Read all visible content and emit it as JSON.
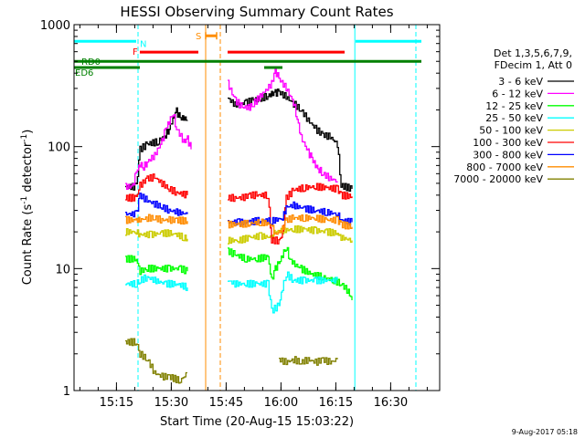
{
  "chart_data": {
    "type": "line",
    "title": "HESSI Observing Summary Count Rates",
    "xlabel": "Start Time (20-Aug-15 15:03:22)",
    "ylabel_main": "Count Rate (s",
    "ylabel_sup1": "-1",
    "ylabel_mid": " detector",
    "ylabel_sup2": "-1",
    "ylabel_end": ")",
    "y_scale": "log",
    "ylim": [
      1,
      1000
    ],
    "xlim_minutes": [
      0,
      100
    ],
    "x_ticks": [
      {
        "label": "15:15",
        "minute": 11.6
      },
      {
        "label": "15:30",
        "minute": 26.6
      },
      {
        "label": "15:45",
        "minute": 41.6
      },
      {
        "label": "16:00",
        "minute": 56.6
      },
      {
        "label": "16:15",
        "minute": 71.6
      },
      {
        "label": "16:30",
        "minute": 86.6
      }
    ],
    "y_ticks": [
      {
        "label": "1",
        "value": 1
      },
      {
        "label": "10",
        "value": 10
      },
      {
        "label": "100",
        "value": 100
      },
      {
        "label": "1000",
        "value": 1000
      }
    ],
    "legend_header": [
      "Det 1,3,5,6,7,9,",
      "FDecim 1, Att 0"
    ],
    "legend_position": "right",
    "series": [
      {
        "name": "3 - 6 keV",
        "color": "#000000",
        "segments": [
          [
            [
              14,
              47
            ],
            [
              17,
              47
            ],
            [
              18,
              95
            ],
            [
              20,
              105
            ],
            [
              23,
              110
            ],
            [
              25,
              125
            ],
            [
              26,
              140
            ],
            [
              27,
              170
            ],
            [
              28,
              195
            ],
            [
              29,
              170
            ],
            [
              30,
              172
            ],
            [
              31,
              165
            ]
          ],
          [
            [
              42,
              250
            ],
            [
              44,
              220
            ],
            [
              47,
              230
            ],
            [
              49,
              240
            ],
            [
              50,
              245
            ],
            [
              51,
              250
            ],
            [
              53,
              260
            ],
            [
              54,
              270
            ],
            [
              55,
              275
            ],
            [
              56,
              280
            ],
            [
              58,
              255
            ],
            [
              60,
              225
            ],
            [
              62,
              200
            ],
            [
              64,
              165
            ],
            [
              66,
              140
            ],
            [
              68,
              125
            ],
            [
              70,
              120
            ],
            [
              72,
              105
            ],
            [
              73,
              48
            ],
            [
              76,
              45
            ]
          ]
        ]
      },
      {
        "name": "6 - 12 keV",
        "color": "#ff00ff",
        "segments": [
          [
            [
              14,
              47
            ],
            [
              16,
              47
            ],
            [
              17,
              62
            ],
            [
              18,
              72
            ],
            [
              19,
              68
            ],
            [
              20,
              75
            ],
            [
              22,
              85
            ],
            [
              24,
              110
            ],
            [
              25,
              140
            ],
            [
              26,
              160
            ],
            [
              27,
              190
            ],
            [
              28,
              140
            ],
            [
              30,
              110
            ],
            [
              31,
              115
            ],
            [
              32,
              95
            ]
          ],
          [
            [
              42,
              330
            ],
            [
              44,
              240
            ],
            [
              46,
              210
            ],
            [
              48,
              210
            ],
            [
              49,
              225
            ],
            [
              52,
              280
            ],
            [
              54,
              330
            ],
            [
              55,
              420
            ],
            [
              56,
              360
            ],
            [
              58,
              300
            ],
            [
              60,
              230
            ],
            [
              61,
              170
            ],
            [
              62,
              120
            ],
            [
              64,
              90
            ],
            [
              65,
              80
            ],
            [
              66,
              70
            ],
            [
              67,
              65
            ],
            [
              68,
              60
            ],
            [
              70,
              55
            ],
            [
              72,
              52
            ]
          ]
        ]
      },
      {
        "name": "12 - 25 keV",
        "color": "#00ff00",
        "segments": [
          [
            [
              14,
              12
            ],
            [
              17,
              12
            ],
            [
              18,
              9.5
            ],
            [
              20,
              10
            ],
            [
              23,
              10
            ],
            [
              26,
              10
            ],
            [
              29,
              10
            ],
            [
              31,
              9.5
            ]
          ],
          [
            [
              42,
              14
            ],
            [
              44,
              13
            ],
            [
              47,
              12
            ],
            [
              50,
              12
            ],
            [
              53,
              12.5
            ],
            [
              54,
              8
            ],
            [
              55,
              10
            ],
            [
              56,
              11
            ],
            [
              57,
              13
            ],
            [
              58,
              15
            ],
            [
              59,
              12
            ],
            [
              60,
              11
            ],
            [
              62,
              10
            ],
            [
              65,
              9
            ],
            [
              68,
              8.5
            ],
            [
              71,
              8
            ],
            [
              73,
              7.5
            ],
            [
              75,
              6.5
            ],
            [
              76,
              5.5
            ]
          ]
        ]
      },
      {
        "name": "25 - 50 keV",
        "color": "#00ffff",
        "segments": [
          [
            [
              14,
              7.5
            ],
            [
              17,
              7.5
            ],
            [
              18,
              8
            ],
            [
              20,
              8.5
            ],
            [
              22,
              8
            ],
            [
              25,
              7.5
            ],
            [
              28,
              7.5
            ],
            [
              31,
              7
            ]
          ],
          [
            [
              42,
              8
            ],
            [
              44,
              7.5
            ],
            [
              47,
              7.5
            ],
            [
              50,
              7.5
            ],
            [
              53,
              7.5
            ],
            [
              54,
              4.5
            ],
            [
              56,
              5
            ],
            [
              57,
              7
            ],
            [
              58,
              9
            ],
            [
              60,
              8
            ],
            [
              63,
              8
            ],
            [
              66,
              8
            ],
            [
              70,
              8
            ],
            [
              72,
              8
            ]
          ]
        ]
      },
      {
        "name": "50 - 100 keV",
        "color": "#cccc00",
        "segments": [
          [
            [
              14,
              20
            ],
            [
              17,
              20
            ],
            [
              18,
              19
            ],
            [
              21,
              19
            ],
            [
              24,
              19.5
            ],
            [
              27,
              19.5
            ],
            [
              30,
              18
            ],
            [
              31,
              17.5
            ]
          ],
          [
            [
              42,
              17
            ],
            [
              45,
              17
            ],
            [
              48,
              18
            ],
            [
              51,
              18.5
            ],
            [
              54,
              18
            ],
            [
              55,
              20
            ],
            [
              57,
              20.5
            ],
            [
              60,
              21
            ],
            [
              63,
              21
            ],
            [
              66,
              20.5
            ],
            [
              69,
              20
            ],
            [
              72,
              19.5
            ],
            [
              73,
              18
            ],
            [
              76,
              17
            ]
          ]
        ]
      },
      {
        "name": "100 - 300 keV",
        "color": "#ff0000",
        "segments": [
          [
            [
              14,
              38
            ],
            [
              17,
              38
            ],
            [
              18,
              48
            ],
            [
              20,
              55
            ],
            [
              22,
              56
            ],
            [
              24,
              50
            ],
            [
              26,
              45
            ],
            [
              28,
              42
            ],
            [
              31,
              40
            ]
          ],
          [
            [
              42,
              38
            ],
            [
              44,
              38
            ],
            [
              46,
              38
            ],
            [
              48,
              40
            ],
            [
              50,
              40
            ],
            [
              53,
              40
            ],
            [
              54,
              17
            ],
            [
              56,
              17
            ],
            [
              57,
              19
            ],
            [
              58,
              38
            ],
            [
              60,
              44
            ],
            [
              63,
              46
            ],
            [
              66,
              47
            ],
            [
              69,
              46
            ],
            [
              72,
              45
            ],
            [
              73,
              40
            ],
            [
              76,
              39
            ]
          ]
        ]
      },
      {
        "name": "300 - 800 keV",
        "color": "#0000ff",
        "segments": [
          [
            [
              14,
              28
            ],
            [
              17,
              28
            ],
            [
              18,
              40
            ],
            [
              20,
              36
            ],
            [
              22,
              34
            ],
            [
              24,
              32
            ],
            [
              26,
              30
            ],
            [
              28,
              29
            ],
            [
              31,
              28
            ]
          ],
          [
            [
              42,
              24
            ],
            [
              45,
              24
            ],
            [
              48,
              24
            ],
            [
              51,
              25
            ],
            [
              54,
              24.5
            ],
            [
              57,
              26
            ],
            [
              58,
              32
            ],
            [
              60,
              33
            ],
            [
              63,
              31
            ],
            [
              66,
              30
            ],
            [
              69,
              29
            ],
            [
              72,
              28
            ],
            [
              73,
              25
            ],
            [
              76,
              24
            ]
          ]
        ]
      },
      {
        "name": "800 - 7000 keV",
        "color": "#ff8c00",
        "segments": [
          [
            [
              14,
              25
            ],
            [
              17,
              25
            ],
            [
              18,
              25
            ],
            [
              20,
              26
            ],
            [
              22,
              26
            ],
            [
              24,
              25
            ],
            [
              26,
              25
            ],
            [
              28,
              25
            ],
            [
              31,
              24.5
            ]
          ],
          [
            [
              42,
              23
            ],
            [
              45,
              23
            ],
            [
              48,
              23.5
            ],
            [
              51,
              24
            ],
            [
              54,
              23
            ],
            [
              55,
              19
            ],
            [
              57,
              21
            ],
            [
              58,
              25
            ],
            [
              60,
              26
            ],
            [
              63,
              26
            ],
            [
              66,
              26
            ],
            [
              69,
              25
            ],
            [
              72,
              25
            ],
            [
              73,
              23
            ],
            [
              76,
              22
            ]
          ]
        ]
      },
      {
        "name": "7000 - 20000 keV",
        "color": "#808000",
        "segments": [
          [
            [
              14,
              2.5
            ],
            [
              17,
              2.5
            ],
            [
              18,
              2
            ],
            [
              20,
              1.8
            ],
            [
              22,
              1.4
            ],
            [
              24,
              1.3
            ],
            [
              26,
              1.3
            ],
            [
              29,
              1.2
            ],
            [
              31,
              1.4
            ]
          ],
          [
            [
              56,
              1.8
            ],
            [
              58,
              1.7
            ],
            [
              60,
              1.8
            ],
            [
              62,
              1.7
            ],
            [
              64,
              1.8
            ],
            [
              66,
              1.7
            ],
            [
              68,
              1.8
            ],
            [
              70,
              1.7
            ],
            [
              72,
              1.8
            ]
          ]
        ]
      }
    ],
    "state_bars": [
      {
        "label": "N",
        "color": "#00ffff",
        "level": 730,
        "ranges": [
          [
            0,
            17
          ],
          [
            77,
            95
          ]
        ]
      },
      {
        "label": "F",
        "color": "#ff0000",
        "level": 595,
        "ranges": [
          [
            18,
            34
          ],
          [
            42,
            74
          ]
        ]
      },
      {
        "label": "RD0",
        "color": "#008000",
        "level": 500,
        "ranges": [
          [
            0,
            95
          ]
        ]
      },
      {
        "label": "ED6",
        "color": "#008000",
        "level": 445,
        "ranges": [
          [
            0,
            18
          ],
          [
            52,
            57
          ]
        ]
      },
      {
        "label": "S",
        "color": "#ff8c00",
        "level": 810,
        "ranges": [
          [
            36,
            39
          ]
        ]
      }
    ],
    "vertical_markers": [
      {
        "minute": 17.5,
        "color": "#00ffff",
        "style": "dashed"
      },
      {
        "minute": 36,
        "color": "#ff8c00",
        "style": "solid"
      },
      {
        "minute": 40,
        "color": "#ff8c00",
        "style": "dashed"
      },
      {
        "minute": 76.8,
        "color": "#00ffff",
        "style": "solid"
      },
      {
        "minute": 93.5,
        "color": "#00ffff",
        "style": "dashed"
      }
    ]
  },
  "footer": {
    "timestamp": "9-Aug-2017 05:18"
  }
}
